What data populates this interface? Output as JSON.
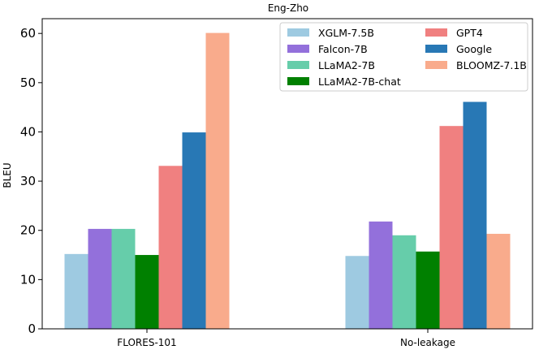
{
  "chart_data": {
    "type": "bar",
    "title": "Eng-Zho",
    "xlabel": "",
    "ylabel": "BLEU",
    "ylim": [
      0,
      63
    ],
    "yticks": [
      0,
      10,
      20,
      30,
      40,
      50,
      60
    ],
    "categories": [
      "FLORES-101",
      "No-leakage"
    ],
    "grid": false,
    "legend_position": "top-right",
    "series": [
      {
        "name": "XGLM-7.5B",
        "color": "#9ecae1",
        "values": [
          15.2,
          14.8
        ]
      },
      {
        "name": "Falcon-7B",
        "color": "#9370db",
        "values": [
          20.3,
          21.8
        ]
      },
      {
        "name": "LLaMA2-7B",
        "color": "#66cdaa",
        "values": [
          20.3,
          19.0
        ]
      },
      {
        "name": "LLaMA2-7B-chat",
        "color": "#008000",
        "values": [
          15.0,
          15.7
        ]
      },
      {
        "name": "GPT4",
        "color": "#f08080",
        "values": [
          33.1,
          41.2
        ]
      },
      {
        "name": "Google",
        "color": "#2878b5",
        "values": [
          39.9,
          46.1
        ]
      },
      {
        "name": "BLOOMZ-7.1B",
        "color": "#f9ab8c",
        "values": [
          60.1,
          19.3
        ]
      }
    ]
  }
}
